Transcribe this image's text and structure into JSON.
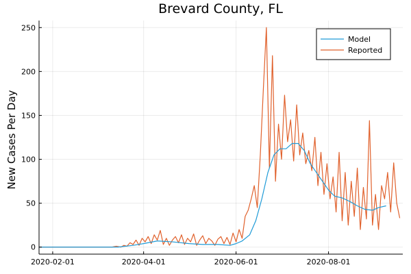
{
  "chart_data": {
    "type": "line",
    "title": "Brevard County, FL",
    "xlabel": "",
    "ylabel": "New Cases Per Day",
    "x_axis_type": "date",
    "xlim": [
      "2020-01-23",
      "2020-09-19"
    ],
    "ylim": [
      -8,
      258
    ],
    "x_ticks": [
      "2020-02-01",
      "2020-04-01",
      "2020-06-01",
      "2020-08-01"
    ],
    "y_ticks": [
      0,
      50,
      100,
      150,
      200,
      250
    ],
    "grid": true,
    "legend_position": "top-right",
    "series": [
      {
        "name": "Model",
        "color": "#1f9bd7",
        "x": [
          "2020-01-23",
          "2020-03-15",
          "2020-03-25",
          "2020-04-01",
          "2020-04-10",
          "2020-04-20",
          "2020-05-01",
          "2020-05-10",
          "2020-05-20",
          "2020-05-28",
          "2020-06-01",
          "2020-06-05",
          "2020-06-10",
          "2020-06-14",
          "2020-06-18",
          "2020-06-22",
          "2020-06-26",
          "2020-06-30",
          "2020-07-04",
          "2020-07-08",
          "2020-07-12",
          "2020-07-16",
          "2020-07-20",
          "2020-07-24",
          "2020-07-28",
          "2020-08-01",
          "2020-08-05",
          "2020-08-10",
          "2020-08-15",
          "2020-08-20",
          "2020-08-25",
          "2020-08-30",
          "2020-09-03",
          "2020-09-08"
        ],
        "values": [
          0,
          0,
          2,
          4,
          7,
          6,
          4,
          3,
          3,
          2,
          4,
          7,
          14,
          30,
          55,
          85,
          105,
          112,
          112,
          118,
          118,
          110,
          95,
          85,
          75,
          65,
          58,
          56,
          52,
          47,
          43,
          42,
          45,
          47
        ]
      },
      {
        "name": "Reported",
        "color": "#e0602b",
        "x": [
          "2020-01-23",
          "2020-03-11",
          "2020-03-14",
          "2020-03-17",
          "2020-03-19",
          "2020-03-21",
          "2020-03-23",
          "2020-03-25",
          "2020-03-27",
          "2020-03-29",
          "2020-03-31",
          "2020-04-02",
          "2020-04-04",
          "2020-04-06",
          "2020-04-08",
          "2020-04-10",
          "2020-04-12",
          "2020-04-14",
          "2020-04-16",
          "2020-04-18",
          "2020-04-20",
          "2020-04-22",
          "2020-04-24",
          "2020-04-26",
          "2020-04-28",
          "2020-04-30",
          "2020-05-02",
          "2020-05-04",
          "2020-05-06",
          "2020-05-08",
          "2020-05-10",
          "2020-05-12",
          "2020-05-14",
          "2020-05-16",
          "2020-05-18",
          "2020-05-20",
          "2020-05-22",
          "2020-05-24",
          "2020-05-26",
          "2020-05-28",
          "2020-05-30",
          "2020-06-01",
          "2020-06-03",
          "2020-06-05",
          "2020-06-07",
          "2020-06-09",
          "2020-06-11",
          "2020-06-13",
          "2020-06-15",
          "2020-06-17",
          "2020-06-19",
          "2020-06-21",
          "2020-06-23",
          "2020-06-25",
          "2020-06-27",
          "2020-06-29",
          "2020-07-01",
          "2020-07-03",
          "2020-07-05",
          "2020-07-07",
          "2020-07-09",
          "2020-07-11",
          "2020-07-13",
          "2020-07-15",
          "2020-07-17",
          "2020-07-19",
          "2020-07-21",
          "2020-07-23",
          "2020-07-25",
          "2020-07-27",
          "2020-07-29",
          "2020-07-31",
          "2020-08-02",
          "2020-08-04",
          "2020-08-06",
          "2020-08-08",
          "2020-08-10",
          "2020-08-12",
          "2020-08-14",
          "2020-08-16",
          "2020-08-18",
          "2020-08-20",
          "2020-08-22",
          "2020-08-24",
          "2020-08-26",
          "2020-08-28",
          "2020-08-30",
          "2020-09-01",
          "2020-09-03",
          "2020-09-05",
          "2020-09-07",
          "2020-09-09",
          "2020-09-11",
          "2020-09-13",
          "2020-09-15",
          "2020-09-17"
        ],
        "values": [
          0,
          0,
          1,
          0,
          2,
          1,
          5,
          3,
          8,
          2,
          10,
          6,
          12,
          4,
          14,
          8,
          19,
          3,
          10,
          2,
          8,
          12,
          5,
          14,
          3,
          10,
          6,
          15,
          2,
          8,
          13,
          4,
          10,
          7,
          2,
          9,
          12,
          4,
          11,
          3,
          16,
          6,
          20,
          10,
          35,
          42,
          55,
          70,
          45,
          105,
          180,
          250,
          90,
          218,
          75,
          140,
          100,
          173,
          120,
          145,
          98,
          162,
          105,
          130,
          95,
          110,
          87,
          125,
          70,
          108,
          60,
          95,
          55,
          80,
          40,
          108,
          30,
          85,
          25,
          75,
          35,
          90,
          20,
          68,
          32,
          144,
          25,
          60,
          20,
          70,
          55,
          85,
          40,
          96,
          50,
          33
        ]
      }
    ]
  }
}
